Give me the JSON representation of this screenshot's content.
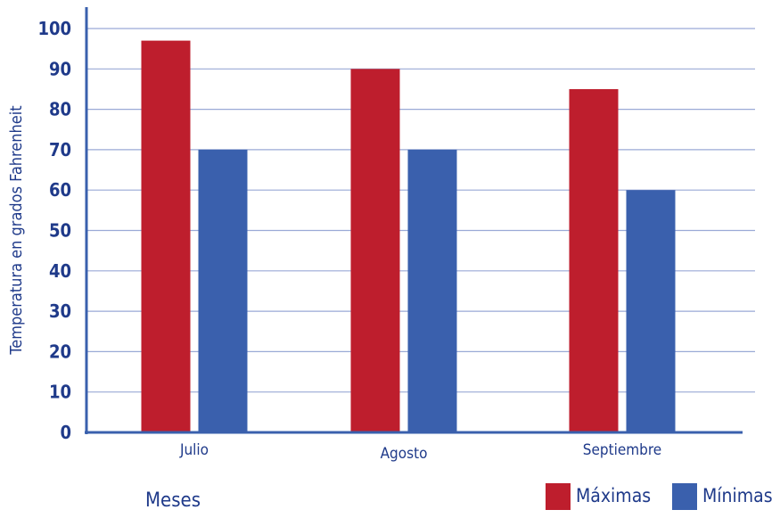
{
  "chart_data": {
    "type": "bar",
    "categories": [
      "Julio",
      "Agosto",
      "Septiembre"
    ],
    "series": [
      {
        "name": "Máximas",
        "values": [
          97,
          90,
          85
        ],
        "color": "#be1e2d"
      },
      {
        "name": "Mínimas",
        "values": [
          70,
          70,
          60
        ],
        "color": "#3a60ad"
      }
    ],
    "xlabel": "Meses",
    "ylabel": "Temperatura en grados Fahrenheit",
    "ylim": [
      0,
      100
    ],
    "yticks": [
      "0",
      "10",
      "20",
      "30",
      "40",
      "50",
      "60",
      "70",
      "80",
      "90",
      "100"
    ],
    "grid": true,
    "legend": "bottom-right",
    "colors": {
      "axis": "#3a60ad",
      "grid": "#9aa9d6",
      "text": "#1f3a8a"
    }
  }
}
